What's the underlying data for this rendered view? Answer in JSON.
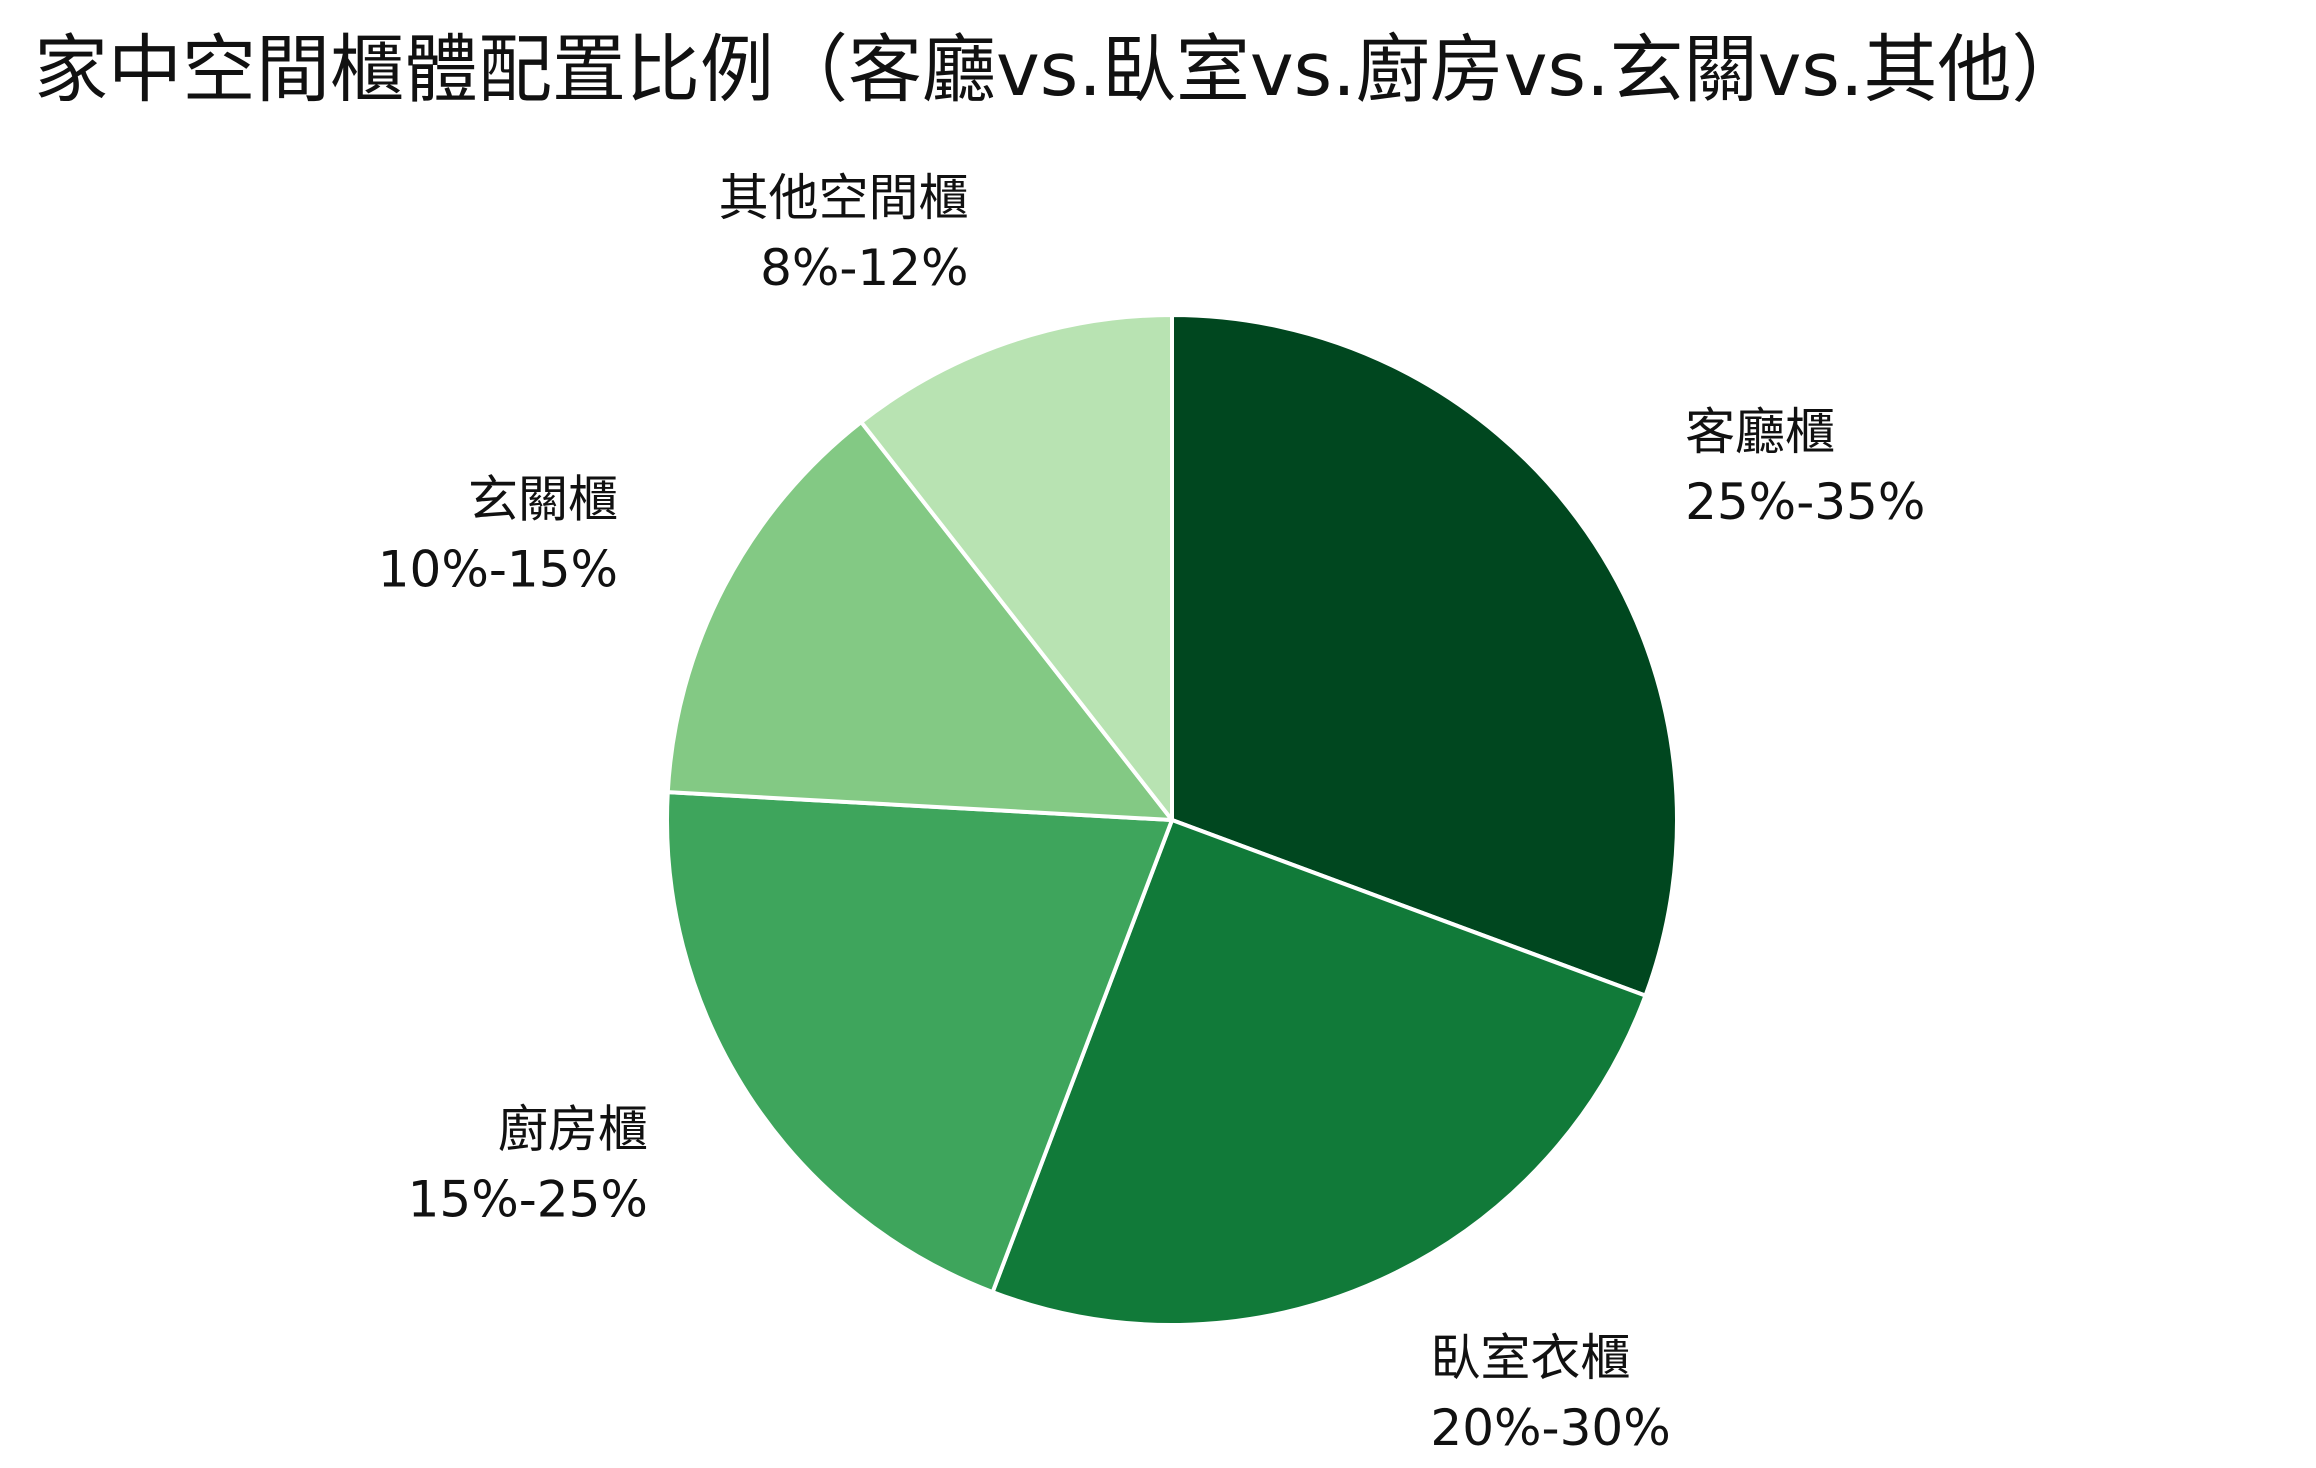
{
  "chart_data": {
    "type": "pie",
    "title": "家中空間櫃體配置比例（客廳vs.臥室vs.廚房vs.玄關vs.其他）",
    "slices": [
      {
        "label": "客廳櫃",
        "range_text": "25%-35%",
        "value": 30.5,
        "color": "#00471f"
      },
      {
        "label": "臥室衣櫃",
        "range_text": "20%-30%",
        "value": 25.0,
        "color": "#117a39"
      },
      {
        "label": "廚房櫃",
        "range_text": "15%-25%",
        "value": 20.0,
        "color": "#3ea55c"
      },
      {
        "label": "玄關櫃",
        "range_text": "10%-15%",
        "value": 13.5,
        "color": "#83c984"
      },
      {
        "label": "其他空間櫃",
        "range_text": "8%-12%",
        "value": 10.5,
        "color": "#b8e3b2"
      }
    ],
    "start_angle": "12 o'clock",
    "direction": "clockwise",
    "legend": "none",
    "slice_border_color": "#ffffff"
  }
}
